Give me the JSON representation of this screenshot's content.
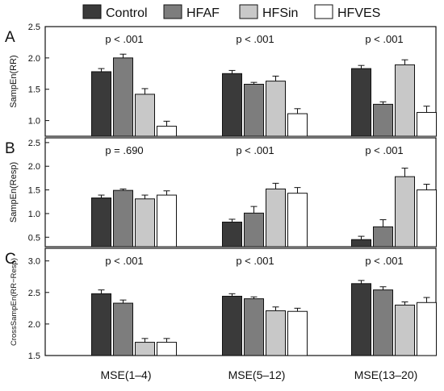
{
  "chart_data": {
    "type": "bar",
    "legend": {
      "position": "top",
      "entries": [
        {
          "name": "Control",
          "color": "#3a3a3a"
        },
        {
          "name": "HFAF",
          "color": "#7d7d7d"
        },
        {
          "name": "HFSin",
          "color": "#c8c8c8"
        },
        {
          "name": "HFVES",
          "color": "#ffffff"
        }
      ]
    },
    "categories": [
      "MSE(1–4)",
      "MSE(5–12)",
      "MSE(13–20)"
    ],
    "panels": [
      {
        "letter": "A",
        "ylabel": "SampEn(RR)",
        "ylim": [
          0.75,
          2.5
        ],
        "ticks": [
          "1.0",
          "1.5",
          "2.0",
          "2.5"
        ],
        "tick_values": [
          1.0,
          1.5,
          2.0,
          2.5
        ],
        "pvalues": [
          "p < .001",
          "p < .001",
          "p < .001"
        ],
        "series": [
          {
            "name": "Control",
            "values": [
              1.78,
              1.75,
              1.83
            ],
            "errors": [
              0.05,
              0.05,
              0.05
            ]
          },
          {
            "name": "HFAF",
            "values": [
              2.0,
              1.58,
              1.26
            ],
            "errors": [
              0.06,
              0.03,
              0.04
            ]
          },
          {
            "name": "HFSin",
            "values": [
              1.42,
              1.63,
              1.89
            ],
            "errors": [
              0.09,
              0.08,
              0.08
            ]
          },
          {
            "name": "HFVES",
            "values": [
              0.91,
              1.11,
              1.13
            ],
            "errors": [
              0.08,
              0.08,
              0.1
            ]
          }
        ]
      },
      {
        "letter": "B",
        "ylabel": "SampEn(Resp)",
        "ylim": [
          0.3,
          2.6
        ],
        "ticks": [
          "0.5",
          "1.0",
          "1.5",
          "2.0",
          "2.5"
        ],
        "tick_values": [
          0.5,
          1.0,
          1.5,
          2.0,
          2.5
        ],
        "pvalues": [
          "p = .690",
          "p < .001",
          "p < .001"
        ],
        "series": [
          {
            "name": "Control",
            "values": [
              1.33,
              0.82,
              0.45
            ],
            "errors": [
              0.06,
              0.06,
              0.07
            ]
          },
          {
            "name": "HFAF",
            "values": [
              1.49,
              1.01,
              0.72
            ],
            "errors": [
              0.03,
              0.14,
              0.15
            ]
          },
          {
            "name": "HFSin",
            "values": [
              1.31,
              1.52,
              1.78
            ],
            "errors": [
              0.08,
              0.12,
              0.18
            ]
          },
          {
            "name": "HFVES",
            "values": [
              1.39,
              1.43,
              1.5
            ],
            "errors": [
              0.09,
              0.12,
              0.12
            ]
          }
        ]
      },
      {
        "letter": "C",
        "ylabel": "CrossSampEn(RR−Resp)",
        "ylim": [
          1.5,
          3.2
        ],
        "ticks": [
          "1.5",
          "2.0",
          "2.5",
          "3.0"
        ],
        "tick_values": [
          1.5,
          2.0,
          2.5,
          3.0
        ],
        "pvalues": [
          "p < .001",
          "p < .001",
          "p < .001"
        ],
        "series": [
          {
            "name": "Control",
            "values": [
              2.48,
              2.44,
              2.64
            ],
            "errors": [
              0.06,
              0.04,
              0.05
            ]
          },
          {
            "name": "HFAF",
            "values": [
              2.33,
              2.4,
              2.54
            ],
            "errors": [
              0.05,
              0.03,
              0.05
            ]
          },
          {
            "name": "HFSin",
            "values": [
              1.71,
              2.21,
              2.3
            ],
            "errors": [
              0.06,
              0.06,
              0.05
            ]
          },
          {
            "name": "HFVES",
            "values": [
              1.71,
              2.2,
              2.34
            ],
            "errors": [
              0.06,
              0.05,
              0.08
            ]
          }
        ]
      }
    ]
  }
}
